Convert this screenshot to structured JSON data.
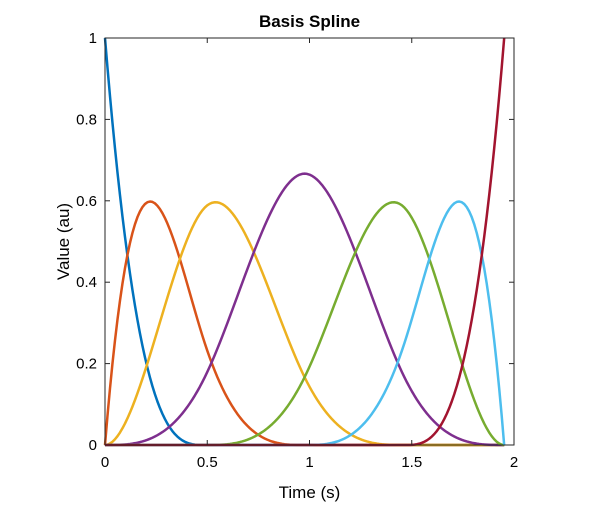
{
  "chart_data": {
    "type": "line",
    "title": "Basis Spline",
    "xlabel": "Time (s)",
    "ylabel": "Value (au)",
    "xlim": [
      0,
      2
    ],
    "ylim": [
      0,
      1
    ],
    "xticks": [
      0,
      0.5,
      1,
      1.5,
      2
    ],
    "xtick_labels": [
      "0",
      "0.5",
      "1",
      "1.5",
      "2"
    ],
    "yticks": [
      0,
      0.2,
      0.4,
      0.6,
      0.8,
      1
    ],
    "ytick_labels": [
      "0",
      "0.2",
      "0.4",
      "0.6",
      "0.8",
      "1"
    ],
    "grid": false,
    "knots": [
      0,
      0,
      0,
      0,
      0.488,
      0.976,
      1.464,
      1.952,
      1.952,
      1.952,
      1.952
    ],
    "degree": 3,
    "series": [
      {
        "color": "#0072BD",
        "peak_x": 0.0,
        "peak_y": 1.0
      },
      {
        "color": "#D95319",
        "peak_x": 0.22,
        "peak_y": 0.6
      },
      {
        "color": "#EDB120",
        "peak_x": 0.54,
        "peak_y": 0.595
      },
      {
        "color": "#7E2F8E",
        "peak_x": 0.976,
        "peak_y": 0.667
      },
      {
        "color": "#77AC30",
        "peak_x": 1.42,
        "peak_y": 0.595
      },
      {
        "color": "#4DBEEE",
        "peak_x": 1.73,
        "peak_y": 0.6
      },
      {
        "color": "#A2142F",
        "peak_x": 1.952,
        "peak_y": 1.0
      }
    ]
  }
}
